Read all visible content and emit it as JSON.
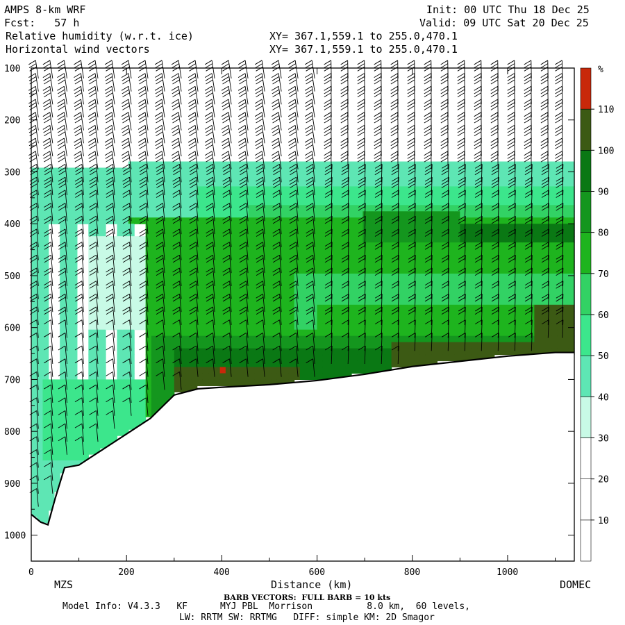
{
  "header": {
    "model": "AMPS 8-km WRF",
    "fcst": "Fcst:   57 h",
    "field1": "Relative humidity (w.r.t. ice)",
    "field2": "Horizontal wind vectors",
    "xy1": "XY= 367.1,559.1 to 255.0,470.1",
    "xy2": "XY= 367.1,559.1 to 255.0,470.1",
    "init": "Init: 00 UTC Thu 18 Dec 25",
    "valid": "Valid: 09 UTC Sat 20 Dec 25"
  },
  "footer": {
    "left_station": "MZS",
    "right_station": "DOMEC",
    "barb_note": "BARB VECTORS:  FULL BARB = 10 kts",
    "model_info": "Model Info: V4.3.3   KF      MYJ PBL  Morrison          8.0 km,  60 levels,",
    "model_info2": "LW: RRTM SW: RRTMG   DIFF: simple KM: 2D Smagor"
  },
  "chart_data": {
    "type": "heatmap",
    "title": "Relative humidity (w.r.t. ice)",
    "xlabel": "Distance (km)",
    "ylabel": "",
    "xlim": [
      0,
      1140
    ],
    "ylim": [
      1050,
      100
    ],
    "x_ticks": [
      0,
      200,
      400,
      600,
      800,
      1000
    ],
    "y_ticks": [
      100,
      200,
      300,
      400,
      500,
      600,
      700,
      800,
      900,
      1000
    ],
    "colorbar": {
      "unit": "%",
      "levels": [
        10,
        20,
        30,
        40,
        50,
        60,
        70,
        80,
        90,
        100,
        110
      ],
      "colors": [
        "#ffffff",
        "#ffffff",
        "#ffffff",
        "#c8fae6",
        "#5ee6b4",
        "#3ce68c",
        "#32d264",
        "#1eb41e",
        "#14961e",
        "#0a7814",
        "#3c5a14",
        "#c8280a"
      ]
    },
    "terrain_profile": {
      "x_km": [
        0,
        20,
        35,
        50,
        70,
        100,
        150,
        200,
        250,
        300,
        350,
        400,
        500,
        600,
        700,
        800,
        900,
        1000,
        1100,
        1140
      ],
      "pressure_hPa": [
        960,
        975,
        980,
        930,
        870,
        865,
        835,
        805,
        775,
        730,
        718,
        715,
        710,
        702,
        690,
        675,
        665,
        655,
        648,
        648
      ]
    },
    "wind_field_grid": {
      "x_km": [
        15,
        45,
        75,
        110,
        140,
        175,
        210,
        245,
        280,
        315,
        350,
        385,
        420,
        455,
        490,
        525,
        560,
        595,
        630,
        665,
        700,
        735,
        770,
        805,
        840,
        875,
        910,
        945,
        980,
        1015,
        1050,
        1085,
        1115
      ],
      "pressure_hPa": [
        120,
        145,
        170,
        195,
        220,
        245,
        270,
        295,
        320,
        345,
        370,
        395,
        420,
        445,
        470,
        495,
        520,
        545,
        570,
        595,
        620,
        645,
        670,
        695,
        720,
        745,
        770,
        795,
        820,
        845,
        870,
        895,
        920,
        945
      ]
    }
  }
}
